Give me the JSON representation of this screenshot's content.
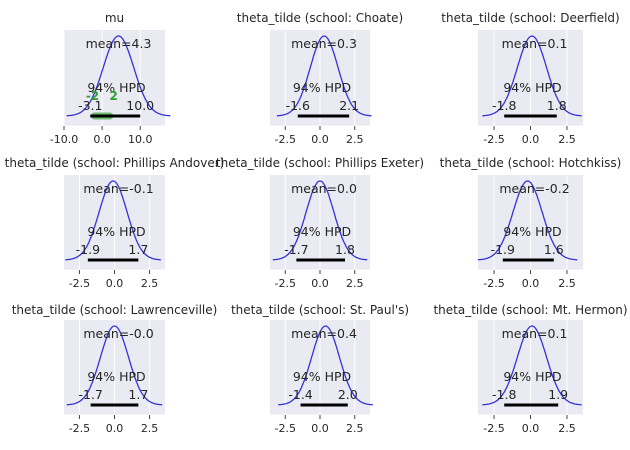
{
  "chart_data": [
    {
      "type": "density",
      "title": "mu",
      "mean_label": "mean=4.3",
      "mean": 4.3,
      "sd": 4.0,
      "xlim": [
        -10,
        16.5
      ],
      "xticks": [
        -10,
        0,
        10
      ],
      "hpd_label": "94% HPD",
      "hpd": [
        -3.1,
        10.0
      ],
      "hpd_labels": [
        "-3.1",
        "10.0"
      ],
      "ref_band": [
        -2,
        2
      ],
      "ref_labels": [
        "-2",
        "2"
      ],
      "ref_color": "#2ca02c",
      "line_color": "#3333dd"
    },
    {
      "type": "density",
      "title": "theta_tilde (school: Choate)",
      "mean_label": "mean=0.3",
      "mean": 0.3,
      "sd": 1.0,
      "xlim": [
        -3.6,
        3.6
      ],
      "xticks": [
        -2.5,
        0.0,
        2.5
      ],
      "hpd_label": "94% HPD",
      "hpd": [
        -1.6,
        2.1
      ],
      "hpd_labels": [
        "-1.6",
        "2.1"
      ],
      "line_color": "#3333dd"
    },
    {
      "type": "density",
      "title": "theta_tilde (school: Deerfield)",
      "mean_label": "mean=0.1",
      "mean": 0.1,
      "sd": 1.0,
      "xlim": [
        -3.6,
        3.6
      ],
      "xticks": [
        -2.5,
        0.0,
        2.5
      ],
      "hpd_label": "94% HPD",
      "hpd": [
        -1.8,
        1.8
      ],
      "hpd_labels": [
        "-1.8",
        "1.8"
      ],
      "line_color": "#3333dd"
    },
    {
      "type": "density",
      "title": "theta_tilde (school: Phillips Andover)",
      "mean_label": "mean=-0.1",
      "mean": -0.1,
      "sd": 1.0,
      "xlim": [
        -3.6,
        3.6
      ],
      "xticks": [
        -2.5,
        0.0,
        2.5
      ],
      "hpd_label": "94% HPD",
      "hpd": [
        -1.9,
        1.7
      ],
      "hpd_labels": [
        "-1.9",
        "1.7"
      ],
      "line_color": "#3333dd"
    },
    {
      "type": "density",
      "title": "theta_tilde (school: Phillips Exeter)",
      "mean_label": "mean=0.0",
      "mean": 0.0,
      "sd": 1.0,
      "xlim": [
        -3.6,
        3.6
      ],
      "xticks": [
        -2.5,
        0.0,
        2.5
      ],
      "hpd_label": "94% HPD",
      "hpd": [
        -1.7,
        1.8
      ],
      "hpd_labels": [
        "-1.7",
        "1.8"
      ],
      "line_color": "#3333dd"
    },
    {
      "type": "density",
      "title": "theta_tilde (school: Hotchkiss)",
      "mean_label": "mean=-0.2",
      "mean": -0.2,
      "sd": 1.0,
      "xlim": [
        -3.6,
        3.6
      ],
      "xticks": [
        -2.5,
        0.0,
        2.5
      ],
      "hpd_label": "94% HPD",
      "hpd": [
        -1.9,
        1.6
      ],
      "hpd_labels": [
        "-1.9",
        "1.6"
      ],
      "line_color": "#3333dd"
    },
    {
      "type": "density",
      "title": "theta_tilde (school: Lawrenceville)",
      "mean_label": "mean=-0.0",
      "mean": -0.0,
      "sd": 1.0,
      "xlim": [
        -3.6,
        3.6
      ],
      "xticks": [
        -2.5,
        0.0,
        2.5
      ],
      "hpd_label": "94% HPD",
      "hpd": [
        -1.7,
        1.7
      ],
      "hpd_labels": [
        "-1.7",
        "1.7"
      ],
      "line_color": "#3333dd"
    },
    {
      "type": "density",
      "title": "theta_tilde (school: St. Paul's)",
      "mean_label": "mean=0.4",
      "mean": 0.4,
      "sd": 1.0,
      "xlim": [
        -3.6,
        3.6
      ],
      "xticks": [
        -2.5,
        0.0,
        2.5
      ],
      "hpd_label": "94% HPD",
      "hpd": [
        -1.4,
        2.0
      ],
      "hpd_labels": [
        "-1.4",
        "2.0"
      ],
      "line_color": "#3333dd"
    },
    {
      "type": "density",
      "title": "theta_tilde (school: Mt. Hermon)",
      "mean_label": "mean=0.1",
      "mean": 0.1,
      "sd": 1.0,
      "xlim": [
        -3.6,
        3.6
      ],
      "xticks": [
        -2.5,
        0.0,
        2.5
      ],
      "hpd_label": "94% HPD",
      "hpd": [
        -1.8,
        1.9
      ],
      "hpd_labels": [
        "-1.8",
        "1.9"
      ],
      "line_color": "#3333dd"
    }
  ]
}
